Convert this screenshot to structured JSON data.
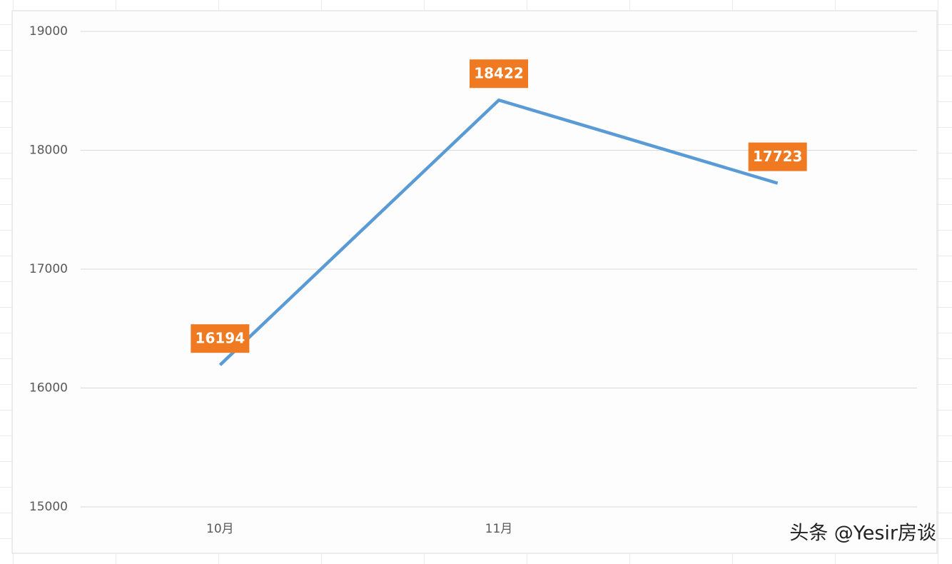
{
  "chart_data": {
    "type": "line",
    "categories": [
      "10月",
      "11月",
      null
    ],
    "values": [
      16194,
      18422,
      17723
    ],
    "color": "#5b9bd5",
    "label_color": "#f07a22",
    "ylim": [
      15000,
      19000
    ],
    "yticks": [
      15000,
      16000,
      17000,
      18000,
      19000
    ],
    "grid": true
  },
  "watermark": "头条 @Yesir房谈"
}
